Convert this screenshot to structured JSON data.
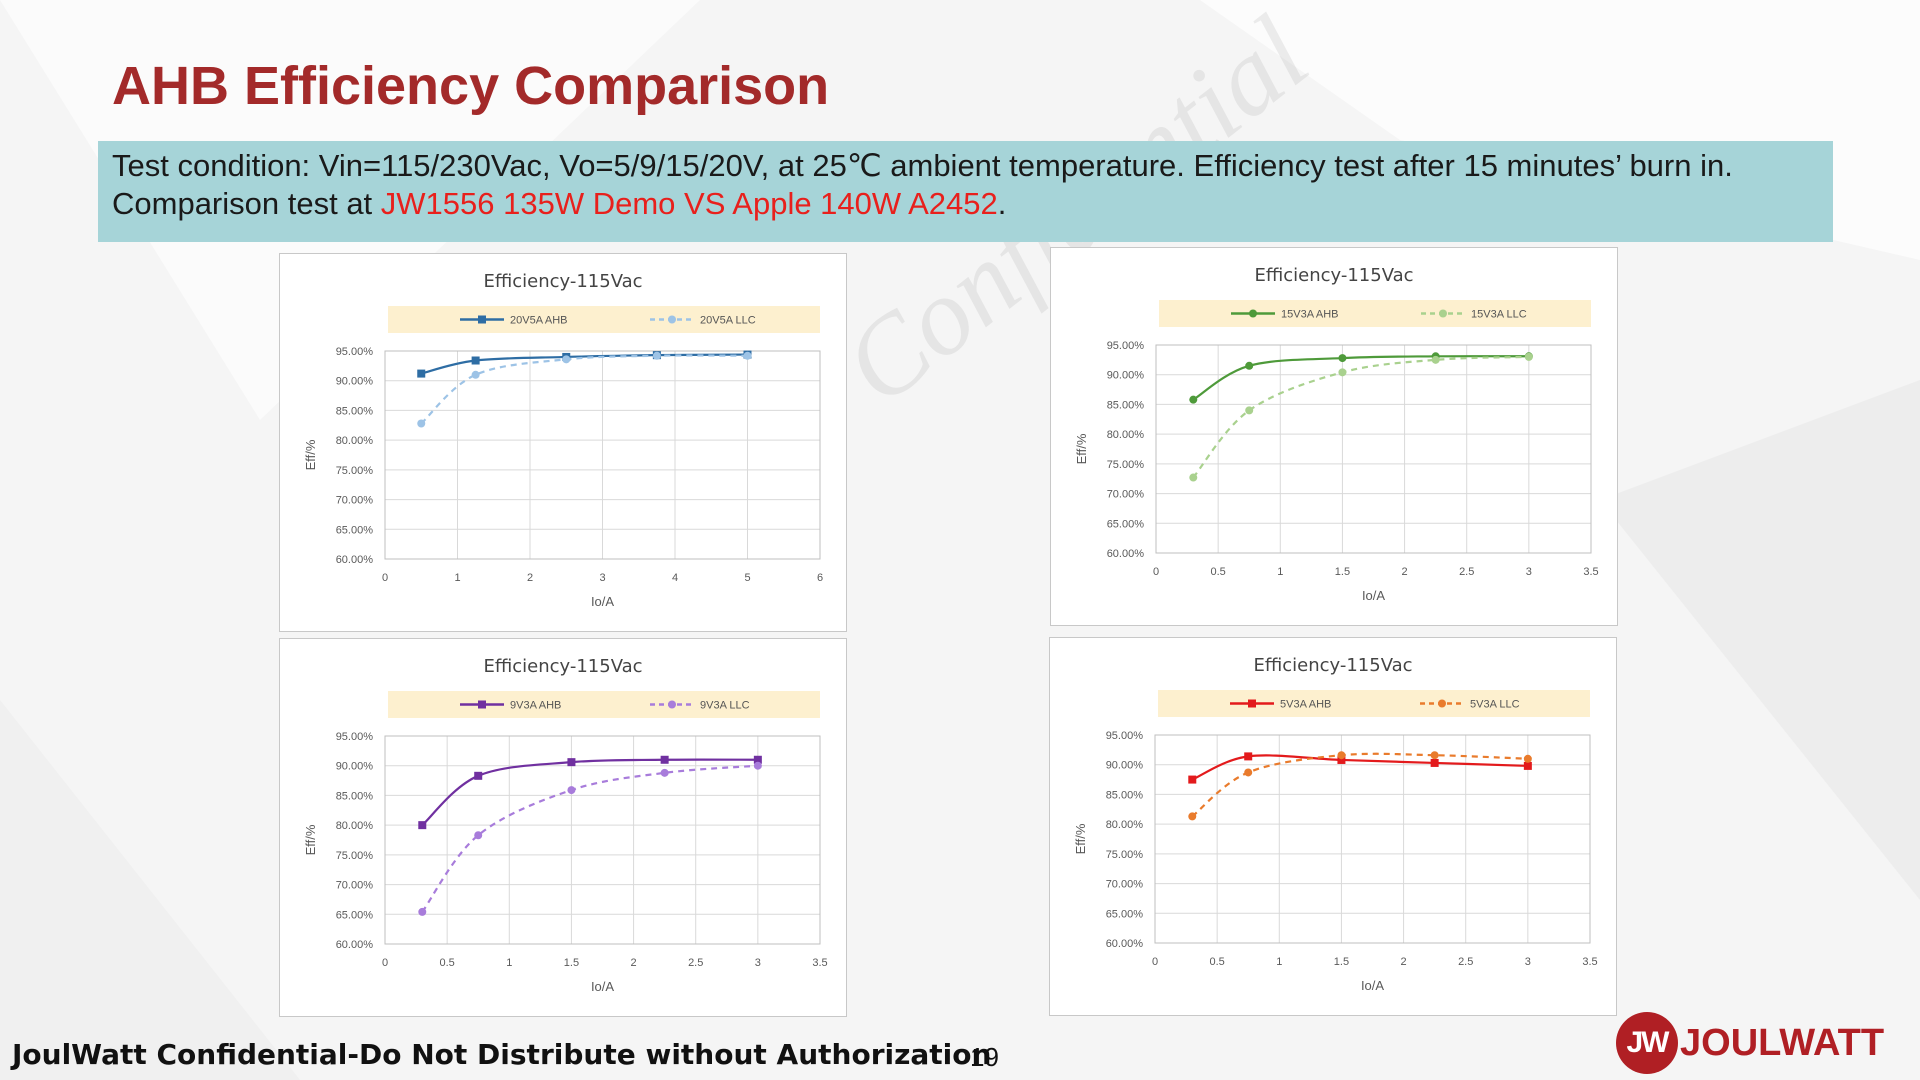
{
  "slide": {
    "title": "AHB Efficiency Comparison",
    "condition_line1": "Test condition: Vin=115/230Vac, Vo=5/9/15/20V, at 25℃ ambient temperature. Efficiency test after 15 minutes’ burn in.",
    "condition_line2_prefix": "Comparison test at ",
    "condition_line2_highlight": "JW1556 135W Demo VS Apple 140W A2452",
    "condition_line2_suffix": ".",
    "watermark": "Confidential",
    "footer": "JoulWatt Confidential-Do Not Distribute without Authorization",
    "page_number": "19",
    "logo_mark": "JW",
    "logo_text": "JOULWATT",
    "highlight_color": "#e8201c",
    "title_color": "#a32a2a"
  },
  "chart_data": [
    {
      "type": "line",
      "title": "Efficiency-115Vac",
      "xlabel": "Io/A",
      "ylabel": "Eff/%",
      "xlim": [
        0,
        6
      ],
      "xticks": [
        0,
        1,
        2,
        3,
        4,
        5,
        6
      ],
      "xtick_labels": [
        "0",
        "1",
        "2",
        "3",
        "4",
        "5",
        "6"
      ],
      "ylim": [
        60,
        95
      ],
      "yticks": [
        60,
        65,
        70,
        75,
        80,
        85,
        90,
        95
      ],
      "ytick_labels": [
        "60.00%",
        "65.00%",
        "70.00%",
        "75.00%",
        "80.00%",
        "85.00%",
        "90.00%",
        "95.00%"
      ],
      "series": [
        {
          "name": "20V5A AHB",
          "color": "#2e6da4",
          "dashed": false,
          "marker": "square",
          "x": [
            0.5,
            1.25,
            2.5,
            3.75,
            5.0
          ],
          "values": [
            91.2,
            93.4,
            94.0,
            94.3,
            94.4
          ]
        },
        {
          "name": "20V5A LLC",
          "color": "#9dc3e6",
          "dashed": true,
          "marker": "circle",
          "x": [
            0.5,
            1.25,
            2.5,
            3.75,
            5.0
          ],
          "values": [
            82.8,
            91.0,
            93.6,
            94.2,
            94.2
          ]
        }
      ]
    },
    {
      "type": "line",
      "title": "Efficiency-115Vac",
      "xlabel": "Io/A",
      "ylabel": "Eff/%",
      "xlim": [
        0,
        3.5
      ],
      "xticks": [
        0,
        0.5,
        1,
        1.5,
        2,
        2.5,
        3,
        3.5
      ],
      "xtick_labels": [
        "0",
        "0.5",
        "1",
        "1.5",
        "2",
        "2.5",
        "3",
        "3.5"
      ],
      "ylim": [
        60,
        95
      ],
      "yticks": [
        60,
        65,
        70,
        75,
        80,
        85,
        90,
        95
      ],
      "ytick_labels": [
        "60.00%",
        "65.00%",
        "70.00%",
        "75.00%",
        "80.00%",
        "85.00%",
        "90.00%",
        "95.00%"
      ],
      "series": [
        {
          "name": "15V3A AHB",
          "color": "#4e9a3a",
          "dashed": false,
          "marker": "circle",
          "x": [
            0.3,
            0.75,
            1.5,
            2.25,
            3.0
          ],
          "values": [
            85.8,
            91.5,
            92.8,
            93.1,
            93.1
          ]
        },
        {
          "name": "15V3A LLC",
          "color": "#a9d18e",
          "dashed": true,
          "marker": "circle",
          "x": [
            0.3,
            0.75,
            1.5,
            2.25,
            3.0
          ],
          "values": [
            72.7,
            84.0,
            90.4,
            92.5,
            93.0
          ]
        }
      ]
    },
    {
      "type": "line",
      "title": "Efficiency-115Vac",
      "xlabel": "Io/A",
      "ylabel": "Eff/%",
      "xlim": [
        0,
        3.5
      ],
      "xticks": [
        0,
        0.5,
        1,
        1.5,
        2,
        2.5,
        3,
        3.5
      ],
      "xtick_labels": [
        "0",
        "0.5",
        "1",
        "1.5",
        "2",
        "2.5",
        "3",
        "3.5"
      ],
      "ylim": [
        60,
        95
      ],
      "yticks": [
        60,
        65,
        70,
        75,
        80,
        85,
        90,
        95
      ],
      "ytick_labels": [
        "60.00%",
        "65.00%",
        "70.00%",
        "75.00%",
        "80.00%",
        "85.00%",
        "90.00%",
        "95.00%"
      ],
      "series": [
        {
          "name": "9V3A AHB",
          "color": "#7030a0",
          "dashed": false,
          "marker": "square",
          "x": [
            0.3,
            0.75,
            1.5,
            2.25,
            3.0
          ],
          "values": [
            80.0,
            88.3,
            90.6,
            91.0,
            91.0
          ]
        },
        {
          "name": "9V3A LLC",
          "color": "#a87cdb",
          "dashed": true,
          "marker": "circle",
          "x": [
            0.3,
            0.75,
            1.5,
            2.25,
            3.0
          ],
          "values": [
            65.4,
            78.3,
            85.9,
            88.8,
            90.0
          ]
        }
      ]
    },
    {
      "type": "line",
      "title": "Efficiency-115Vac",
      "xlabel": "Io/A",
      "ylabel": "Eff/%",
      "xlim": [
        0,
        3.5
      ],
      "xticks": [
        0,
        0.5,
        1,
        1.5,
        2,
        2.5,
        3,
        3.5
      ],
      "xtick_labels": [
        "0",
        "0.5",
        "1",
        "1.5",
        "2",
        "2.5",
        "3",
        "3.5"
      ],
      "ylim": [
        60,
        95
      ],
      "yticks": [
        60,
        65,
        70,
        75,
        80,
        85,
        90,
        95
      ],
      "ytick_labels": [
        "60.00%",
        "65.00%",
        "70.00%",
        "75.00%",
        "80.00%",
        "85.00%",
        "90.00%",
        "95.00%"
      ],
      "series": [
        {
          "name": "5V3A AHB",
          "color": "#e31a1c",
          "dashed": false,
          "marker": "square",
          "x": [
            0.3,
            0.75,
            1.5,
            2.25,
            3.0
          ],
          "values": [
            87.5,
            91.4,
            90.8,
            90.3,
            89.8
          ]
        },
        {
          "name": "5V3A LLC",
          "color": "#e97b2c",
          "dashed": true,
          "marker": "circle",
          "x": [
            0.3,
            0.75,
            1.5,
            2.25,
            3.0
          ],
          "values": [
            81.3,
            88.7,
            91.6,
            91.6,
            91.0
          ]
        }
      ]
    }
  ]
}
